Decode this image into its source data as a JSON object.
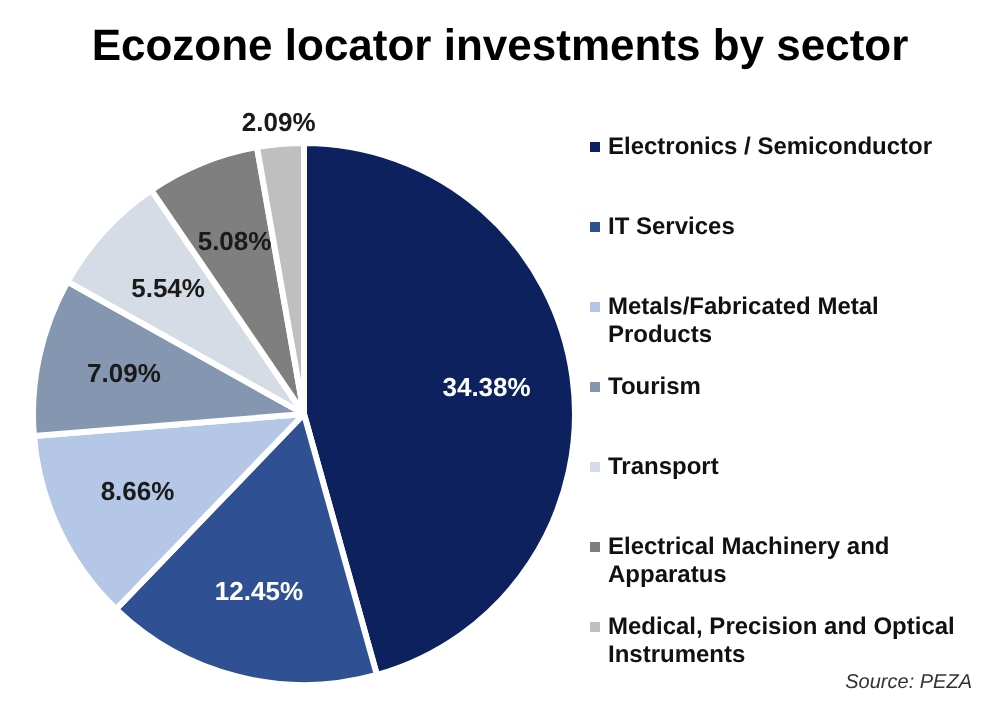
{
  "chart_data": {
    "type": "pie",
    "title": "Ecozone locator investments by sector",
    "categories": [
      "Electronics / Semiconductor",
      "IT Services",
      "Metals/Fabricated Metal Products",
      "Tourism",
      "Transport",
      "Electrical Machinery and Apparatus",
      "Medical, Precision and Optical Instruments"
    ],
    "values": [
      34.38,
      12.45,
      8.66,
      7.09,
      5.54,
      5.08,
      2.09
    ],
    "value_labels": [
      "34.38%",
      "12.45%",
      "8.66%",
      "7.09%",
      "5.54%",
      "5.08%",
      "2.09%"
    ],
    "colors": [
      "#0d215e",
      "#2f5193",
      "#b4c7e7",
      "#8496b0",
      "#d6dce5",
      "#7f7f7f",
      "#bfbfbf"
    ],
    "legend": "right",
    "annotations": [
      "Source: PEZA"
    ]
  }
}
